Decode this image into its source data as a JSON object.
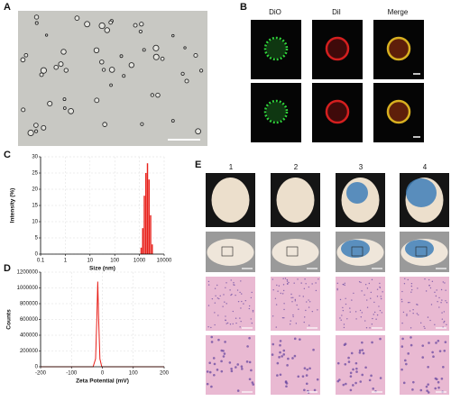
{
  "panel_labels": [
    "A",
    "B",
    "C",
    "D",
    "E"
  ],
  "panel_b": {
    "columns": [
      "DiO",
      "DiI",
      "Merge"
    ]
  },
  "panel_e": {
    "columns": [
      "1",
      "2",
      "3",
      "4"
    ]
  },
  "chart_data": [
    {
      "type": "histogram",
      "ylabel": "Intensity (%)",
      "xlabel": "Size (nm)",
      "bins": [
        1106,
        1281,
        1484,
        1718,
        1990,
        2305,
        2669,
        3091,
        3580
      ],
      "values": [
        2,
        8,
        18,
        25,
        28,
        23,
        12,
        3
      ],
      "color": "#e8201a",
      "xscale": "log",
      "xlim": [
        0.1,
        10000
      ],
      "xticks": [
        0.1,
        1,
        10,
        100,
        1000,
        10000
      ],
      "ylim": [
        0,
        30
      ],
      "yticks": [
        0,
        5,
        10,
        15,
        20,
        25,
        30
      ],
      "grid": true
    },
    {
      "type": "line",
      "ylabel": "Counts",
      "xlabel": "Zeta Potential (mV)",
      "x": [
        -200,
        -30,
        -22,
        -18,
        -15,
        -12,
        -8,
        -2,
        200
      ],
      "values": [
        0,
        0,
        100000,
        600000,
        1080000,
        600000,
        100000,
        0,
        0
      ],
      "color": "#e8201a",
      "xlim": [
        -200,
        200
      ],
      "xticks": [
        -200,
        -100,
        0,
        100,
        200
      ],
      "ylim": [
        0,
        1200000
      ],
      "yticks": [
        0,
        200000,
        400000,
        600000,
        800000,
        1000000,
        1200000
      ],
      "grid": true
    }
  ]
}
